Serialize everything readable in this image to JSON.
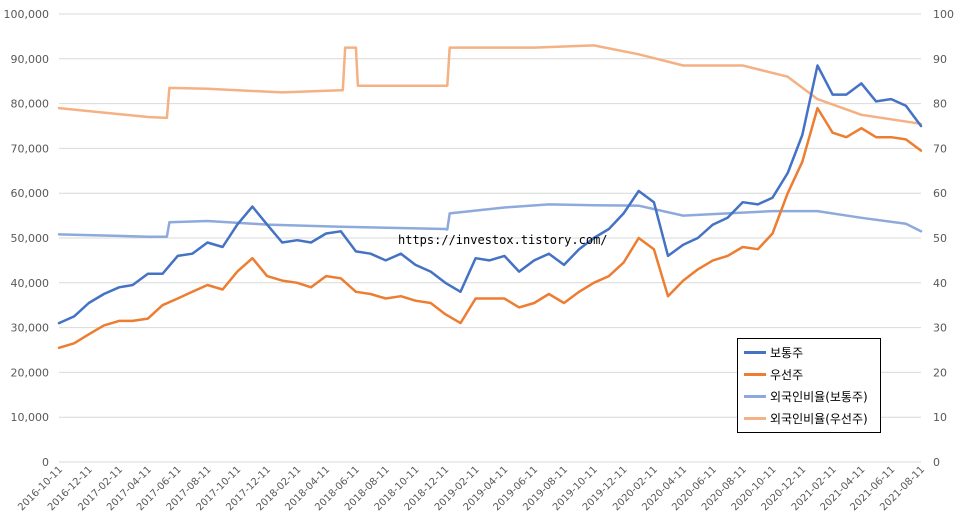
{
  "chart_data": {
    "type": "line",
    "y_axis_left": {
      "min": 0,
      "max": 100000,
      "ticks": [
        "0",
        "10,000",
        "20,000",
        "30,000",
        "40,000",
        "50,000",
        "60,000",
        "70,000",
        "80,000",
        "90,000",
        "100,000"
      ]
    },
    "y_axis_right": {
      "min": 0,
      "max": 100,
      "ticks": [
        "0",
        "10",
        "20",
        "30",
        "40",
        "50",
        "60",
        "70",
        "80",
        "90",
        "100"
      ]
    },
    "x_start": "2016-10-11",
    "x_end": "2021-08-11",
    "x_tick_labels": [
      "2016-10-11",
      "2016-12-11",
      "2017-02-11",
      "2017-04-11",
      "2017-06-11",
      "2017-08-11",
      "2017-10-11",
      "2017-12-11",
      "2018-02-11",
      "2018-04-11",
      "2018-06-11",
      "2018-08-11",
      "2018-10-11",
      "2018-12-11",
      "2019-02-11",
      "2019-04-11",
      "2019-06-11",
      "2019-08-11",
      "2019-10-11",
      "2019-12-11",
      "2020-02-11",
      "2020-04-11",
      "2020-06-11",
      "2020-08-11",
      "2020-10-11",
      "2020-12-11",
      "2021-02-11",
      "2021-04-11",
      "2021-06-11",
      "2021-08-11"
    ],
    "annotation": "https://investox.tistory.com/",
    "grid": true,
    "legend_position": "bottom-right",
    "series": [
      {
        "name": "보통주",
        "axis": "left",
        "color": "#4472C4",
        "points": [
          [
            "2016-10-11",
            31000
          ],
          [
            "2016-11-11",
            32500
          ],
          [
            "2016-12-11",
            35500
          ],
          [
            "2017-01-11",
            37500
          ],
          [
            "2017-02-11",
            39000
          ],
          [
            "2017-03-11",
            39500
          ],
          [
            "2017-04-11",
            42000
          ],
          [
            "2017-05-11",
            42000
          ],
          [
            "2017-06-11",
            46000
          ],
          [
            "2017-07-11",
            46500
          ],
          [
            "2017-08-11",
            49000
          ],
          [
            "2017-09-11",
            48000
          ],
          [
            "2017-10-11",
            53000
          ],
          [
            "2017-11-11",
            57000
          ],
          [
            "2017-12-11",
            53000
          ],
          [
            "2018-01-11",
            49000
          ],
          [
            "2018-02-11",
            49500
          ],
          [
            "2018-03-11",
            49000
          ],
          [
            "2018-04-11",
            51000
          ],
          [
            "2018-05-11",
            51500
          ],
          [
            "2018-06-11",
            47000
          ],
          [
            "2018-07-11",
            46500
          ],
          [
            "2018-08-11",
            45000
          ],
          [
            "2018-09-11",
            46500
          ],
          [
            "2018-10-11",
            44000
          ],
          [
            "2018-11-11",
            42500
          ],
          [
            "2018-12-11",
            40000
          ],
          [
            "2019-01-11",
            38000
          ],
          [
            "2019-02-11",
            45500
          ],
          [
            "2019-03-11",
            45000
          ],
          [
            "2019-04-11",
            46000
          ],
          [
            "2019-05-11",
            42500
          ],
          [
            "2019-06-11",
            45000
          ],
          [
            "2019-07-11",
            46500
          ],
          [
            "2019-08-11",
            44000
          ],
          [
            "2019-09-11",
            47500
          ],
          [
            "2019-10-11",
            50000
          ],
          [
            "2019-11-11",
            52000
          ],
          [
            "2019-12-11",
            55500
          ],
          [
            "2020-01-11",
            60500
          ],
          [
            "2020-02-11",
            58000
          ],
          [
            "2020-03-11",
            46000
          ],
          [
            "2020-04-11",
            48500
          ],
          [
            "2020-05-11",
            50000
          ],
          [
            "2020-06-11",
            53000
          ],
          [
            "2020-07-11",
            54500
          ],
          [
            "2020-08-11",
            58000
          ],
          [
            "2020-09-11",
            57500
          ],
          [
            "2020-10-11",
            59000
          ],
          [
            "2020-11-11",
            64500
          ],
          [
            "2020-12-11",
            73000
          ],
          [
            "2021-01-11",
            88500
          ],
          [
            "2021-02-11",
            82000
          ],
          [
            "2021-03-11",
            82000
          ],
          [
            "2021-04-11",
            84500
          ],
          [
            "2021-05-11",
            80500
          ],
          [
            "2021-06-11",
            81000
          ],
          [
            "2021-07-11",
            79500
          ],
          [
            "2021-08-11",
            75000
          ]
        ]
      },
      {
        "name": "우선주",
        "axis": "left",
        "color": "#ED7D31",
        "points": [
          [
            "2016-10-11",
            25500
          ],
          [
            "2016-11-11",
            26500
          ],
          [
            "2016-12-11",
            28500
          ],
          [
            "2017-01-11",
            30500
          ],
          [
            "2017-02-11",
            31500
          ],
          [
            "2017-03-11",
            31500
          ],
          [
            "2017-04-11",
            32000
          ],
          [
            "2017-05-11",
            35000
          ],
          [
            "2017-06-11",
            36500
          ],
          [
            "2017-07-11",
            38000
          ],
          [
            "2017-08-11",
            39500
          ],
          [
            "2017-09-11",
            38500
          ],
          [
            "2017-10-11",
            42500
          ],
          [
            "2017-11-11",
            45500
          ],
          [
            "2017-12-11",
            41500
          ],
          [
            "2018-01-11",
            40500
          ],
          [
            "2018-02-11",
            40000
          ],
          [
            "2018-03-11",
            39000
          ],
          [
            "2018-04-11",
            41500
          ],
          [
            "2018-05-11",
            41000
          ],
          [
            "2018-06-11",
            38000
          ],
          [
            "2018-07-11",
            37500
          ],
          [
            "2018-08-11",
            36500
          ],
          [
            "2018-09-11",
            37000
          ],
          [
            "2018-10-11",
            36000
          ],
          [
            "2018-11-11",
            35500
          ],
          [
            "2018-12-11",
            33000
          ],
          [
            "2019-01-11",
            31000
          ],
          [
            "2019-02-11",
            36500
          ],
          [
            "2019-03-11",
            36500
          ],
          [
            "2019-04-11",
            36500
          ],
          [
            "2019-05-11",
            34500
          ],
          [
            "2019-06-11",
            35500
          ],
          [
            "2019-07-11",
            37500
          ],
          [
            "2019-08-11",
            35500
          ],
          [
            "2019-09-11",
            38000
          ],
          [
            "2019-10-11",
            40000
          ],
          [
            "2019-11-11",
            41500
          ],
          [
            "2019-12-11",
            44500
          ],
          [
            "2020-01-11",
            50000
          ],
          [
            "2020-02-11",
            47500
          ],
          [
            "2020-03-11",
            37000
          ],
          [
            "2020-04-11",
            40500
          ],
          [
            "2020-05-11",
            43000
          ],
          [
            "2020-06-11",
            45000
          ],
          [
            "2020-07-11",
            46000
          ],
          [
            "2020-08-11",
            48000
          ],
          [
            "2020-09-11",
            47500
          ],
          [
            "2020-10-11",
            51000
          ],
          [
            "2020-11-11",
            60000
          ],
          [
            "2020-12-11",
            67000
          ],
          [
            "2021-01-11",
            79000
          ],
          [
            "2021-02-11",
            73500
          ],
          [
            "2021-03-11",
            72500
          ],
          [
            "2021-04-11",
            74500
          ],
          [
            "2021-05-11",
            72500
          ],
          [
            "2021-06-11",
            72500
          ],
          [
            "2021-07-11",
            72000
          ],
          [
            "2021-08-11",
            69500
          ]
        ]
      },
      {
        "name": "외국인비율(보통주)",
        "axis": "right",
        "color": "#8EA9DB",
        "points": [
          [
            "2016-10-11",
            50.8
          ],
          [
            "2017-04-11",
            50.3
          ],
          [
            "2017-05-20",
            50.3
          ],
          [
            "2017-05-25",
            53.5
          ],
          [
            "2017-08-11",
            53.8
          ],
          [
            "2017-12-11",
            53.0
          ],
          [
            "2018-05-11",
            52.5
          ],
          [
            "2018-12-11",
            52.0
          ],
          [
            "2018-12-15",
            51.9
          ],
          [
            "2018-12-20",
            55.5
          ],
          [
            "2019-04-11",
            56.8
          ],
          [
            "2019-07-11",
            57.5
          ],
          [
            "2019-10-11",
            57.3
          ],
          [
            "2020-01-11",
            57.2
          ],
          [
            "2020-04-11",
            55.0
          ],
          [
            "2020-07-11",
            55.5
          ],
          [
            "2020-10-11",
            56.0
          ],
          [
            "2021-01-11",
            56.0
          ],
          [
            "2021-04-11",
            54.5
          ],
          [
            "2021-07-11",
            53.2
          ],
          [
            "2021-08-11",
            51.5
          ]
        ]
      },
      {
        "name": "외국인비율(우선주)",
        "axis": "right",
        "color": "#F4B183",
        "points": [
          [
            "2016-10-11",
            79.0
          ],
          [
            "2017-01-11",
            78.0
          ],
          [
            "2017-04-11",
            77.0
          ],
          [
            "2017-05-20",
            76.8
          ],
          [
            "2017-05-25",
            83.5
          ],
          [
            "2017-08-11",
            83.3
          ],
          [
            "2018-01-11",
            82.5
          ],
          [
            "2018-05-11",
            83.0
          ],
          [
            "2018-05-15",
            83.0
          ],
          [
            "2018-05-20",
            92.5
          ],
          [
            "2018-06-11",
            92.5
          ],
          [
            "2018-06-15",
            84.0
          ],
          [
            "2018-12-11",
            84.0
          ],
          [
            "2018-12-15",
            84.0
          ],
          [
            "2018-12-20",
            92.5
          ],
          [
            "2019-06-11",
            92.5
          ],
          [
            "2019-10-11",
            93.0
          ],
          [
            "2020-01-11",
            91.0
          ],
          [
            "2020-04-11",
            88.5
          ],
          [
            "2020-08-11",
            88.5
          ],
          [
            "2020-11-11",
            86.0
          ],
          [
            "2021-01-11",
            81.0
          ],
          [
            "2021-04-11",
            77.5
          ],
          [
            "2021-08-11",
            75.5
          ]
        ]
      }
    ]
  }
}
